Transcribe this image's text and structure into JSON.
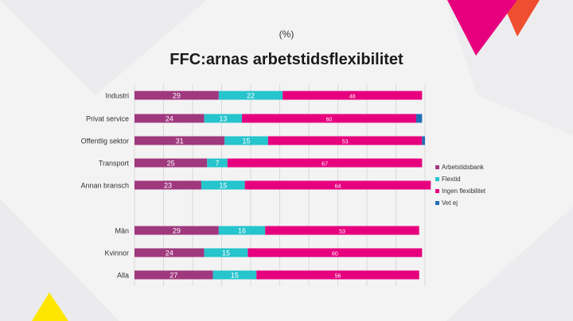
{
  "chart_data": {
    "type": "bar",
    "orientation": "horizontal",
    "stacked": true,
    "subtitle": "(%)",
    "title": "FFC:arnas arbetstidsflexibilitet",
    "xlim": [
      0,
      100
    ],
    "grid": true,
    "legend": "right",
    "categories": [
      "Industri",
      "Privat service",
      "Offentlig sektor",
      "Transport",
      "Annan bransch",
      "Män",
      "Kvinnor",
      "Alla"
    ],
    "series": [
      {
        "name": "Arbetstidsbank",
        "color": "#a0387e",
        "values": [
          29,
          24,
          31,
          25,
          23,
          29,
          24,
          27
        ]
      },
      {
        "name": "Flextid",
        "color": "#26c4cc",
        "values": [
          22,
          13,
          15,
          7,
          15,
          16,
          15,
          15
        ]
      },
      {
        "name": "Ingen flexibilitet",
        "color": "#e6007e",
        "values": [
          48,
          60,
          53,
          67,
          64,
          53,
          60,
          56
        ]
      },
      {
        "name": "Vet ej",
        "color": "#1f6fb5",
        "values": [
          0,
          2,
          1,
          0,
          0,
          0,
          0,
          0
        ]
      }
    ],
    "data_labels_shown": [
      [
        true,
        true,
        true,
        false
      ],
      [
        true,
        true,
        true,
        false
      ],
      [
        true,
        true,
        true,
        false
      ],
      [
        true,
        true,
        true,
        false
      ],
      [
        true,
        true,
        true,
        false
      ],
      [
        true,
        true,
        true,
        false
      ],
      [
        true,
        true,
        true,
        false
      ],
      [
        true,
        true,
        true,
        false
      ]
    ]
  },
  "decoration": {
    "magenta": "#e6007e",
    "orange": "#f04e30",
    "yellow": "#ffe600"
  }
}
